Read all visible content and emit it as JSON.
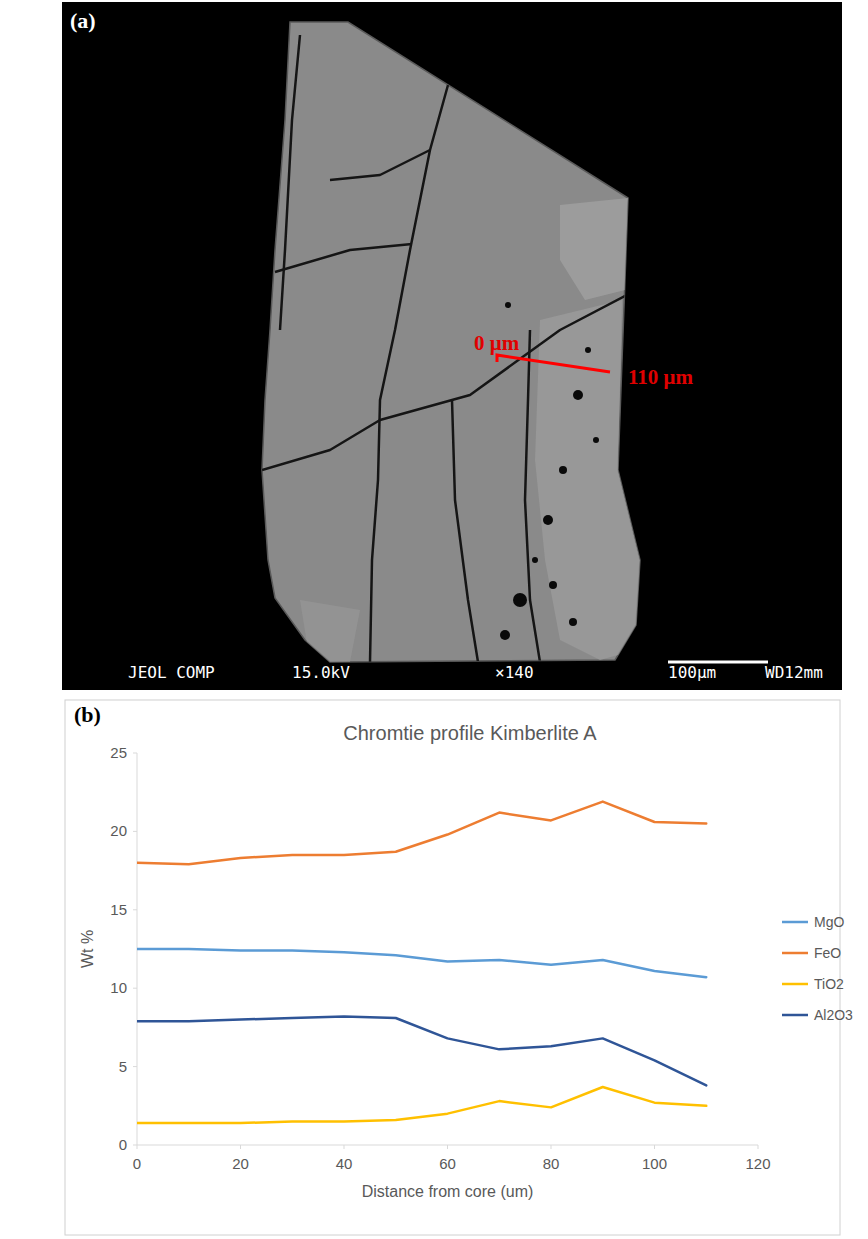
{
  "image_panel": {
    "label": "(a)",
    "profile_start": "0 μm",
    "profile_end": "110 μm",
    "info_bar": [
      "JEOL COMP",
      "15.0kV",
      "×140",
      "100μm",
      "WD12mm"
    ]
  },
  "chart_data": {
    "type": "line",
    "panel_label": "(b)",
    "title": "Chromtie profile Kimberlite A",
    "x_label": "Distance from core (um)",
    "y_label": "Wt %",
    "x": [
      0,
      10,
      20,
      30,
      40,
      50,
      60,
      70,
      80,
      90,
      100,
      110
    ],
    "series": [
      {
        "name": "MgO",
        "color": "#5b9bd5",
        "values": [
          12.5,
          12.5,
          12.4,
          12.4,
          12.3,
          12.1,
          11.7,
          11.8,
          11.5,
          11.8,
          11.1,
          10.7
        ]
      },
      {
        "name": "FeO",
        "color": "#ed7d31",
        "values": [
          18.0,
          17.9,
          18.3,
          18.5,
          18.5,
          18.7,
          19.8,
          21.2,
          20.7,
          21.9,
          20.6,
          20.5
        ]
      },
      {
        "name": "TiO2",
        "color": "#ffc000",
        "values": [
          1.4,
          1.4,
          1.4,
          1.5,
          1.5,
          1.6,
          2.0,
          2.8,
          2.4,
          3.7,
          2.7,
          2.5
        ]
      },
      {
        "name": "Al2O3",
        "color": "#2f5597",
        "values": [
          7.9,
          7.9,
          8.0,
          8.1,
          8.2,
          8.1,
          6.8,
          6.1,
          6.3,
          6.8,
          5.4,
          3.8
        ]
      }
    ],
    "xlim": [
      0,
      120
    ],
    "xticks": [
      0,
      20,
      40,
      60,
      80,
      100,
      120
    ],
    "ylim": [
      0,
      25
    ],
    "yticks": [
      0,
      5,
      10,
      15,
      20,
      25
    ],
    "grid": false,
    "legend": "right",
    "line_style": "solid"
  }
}
